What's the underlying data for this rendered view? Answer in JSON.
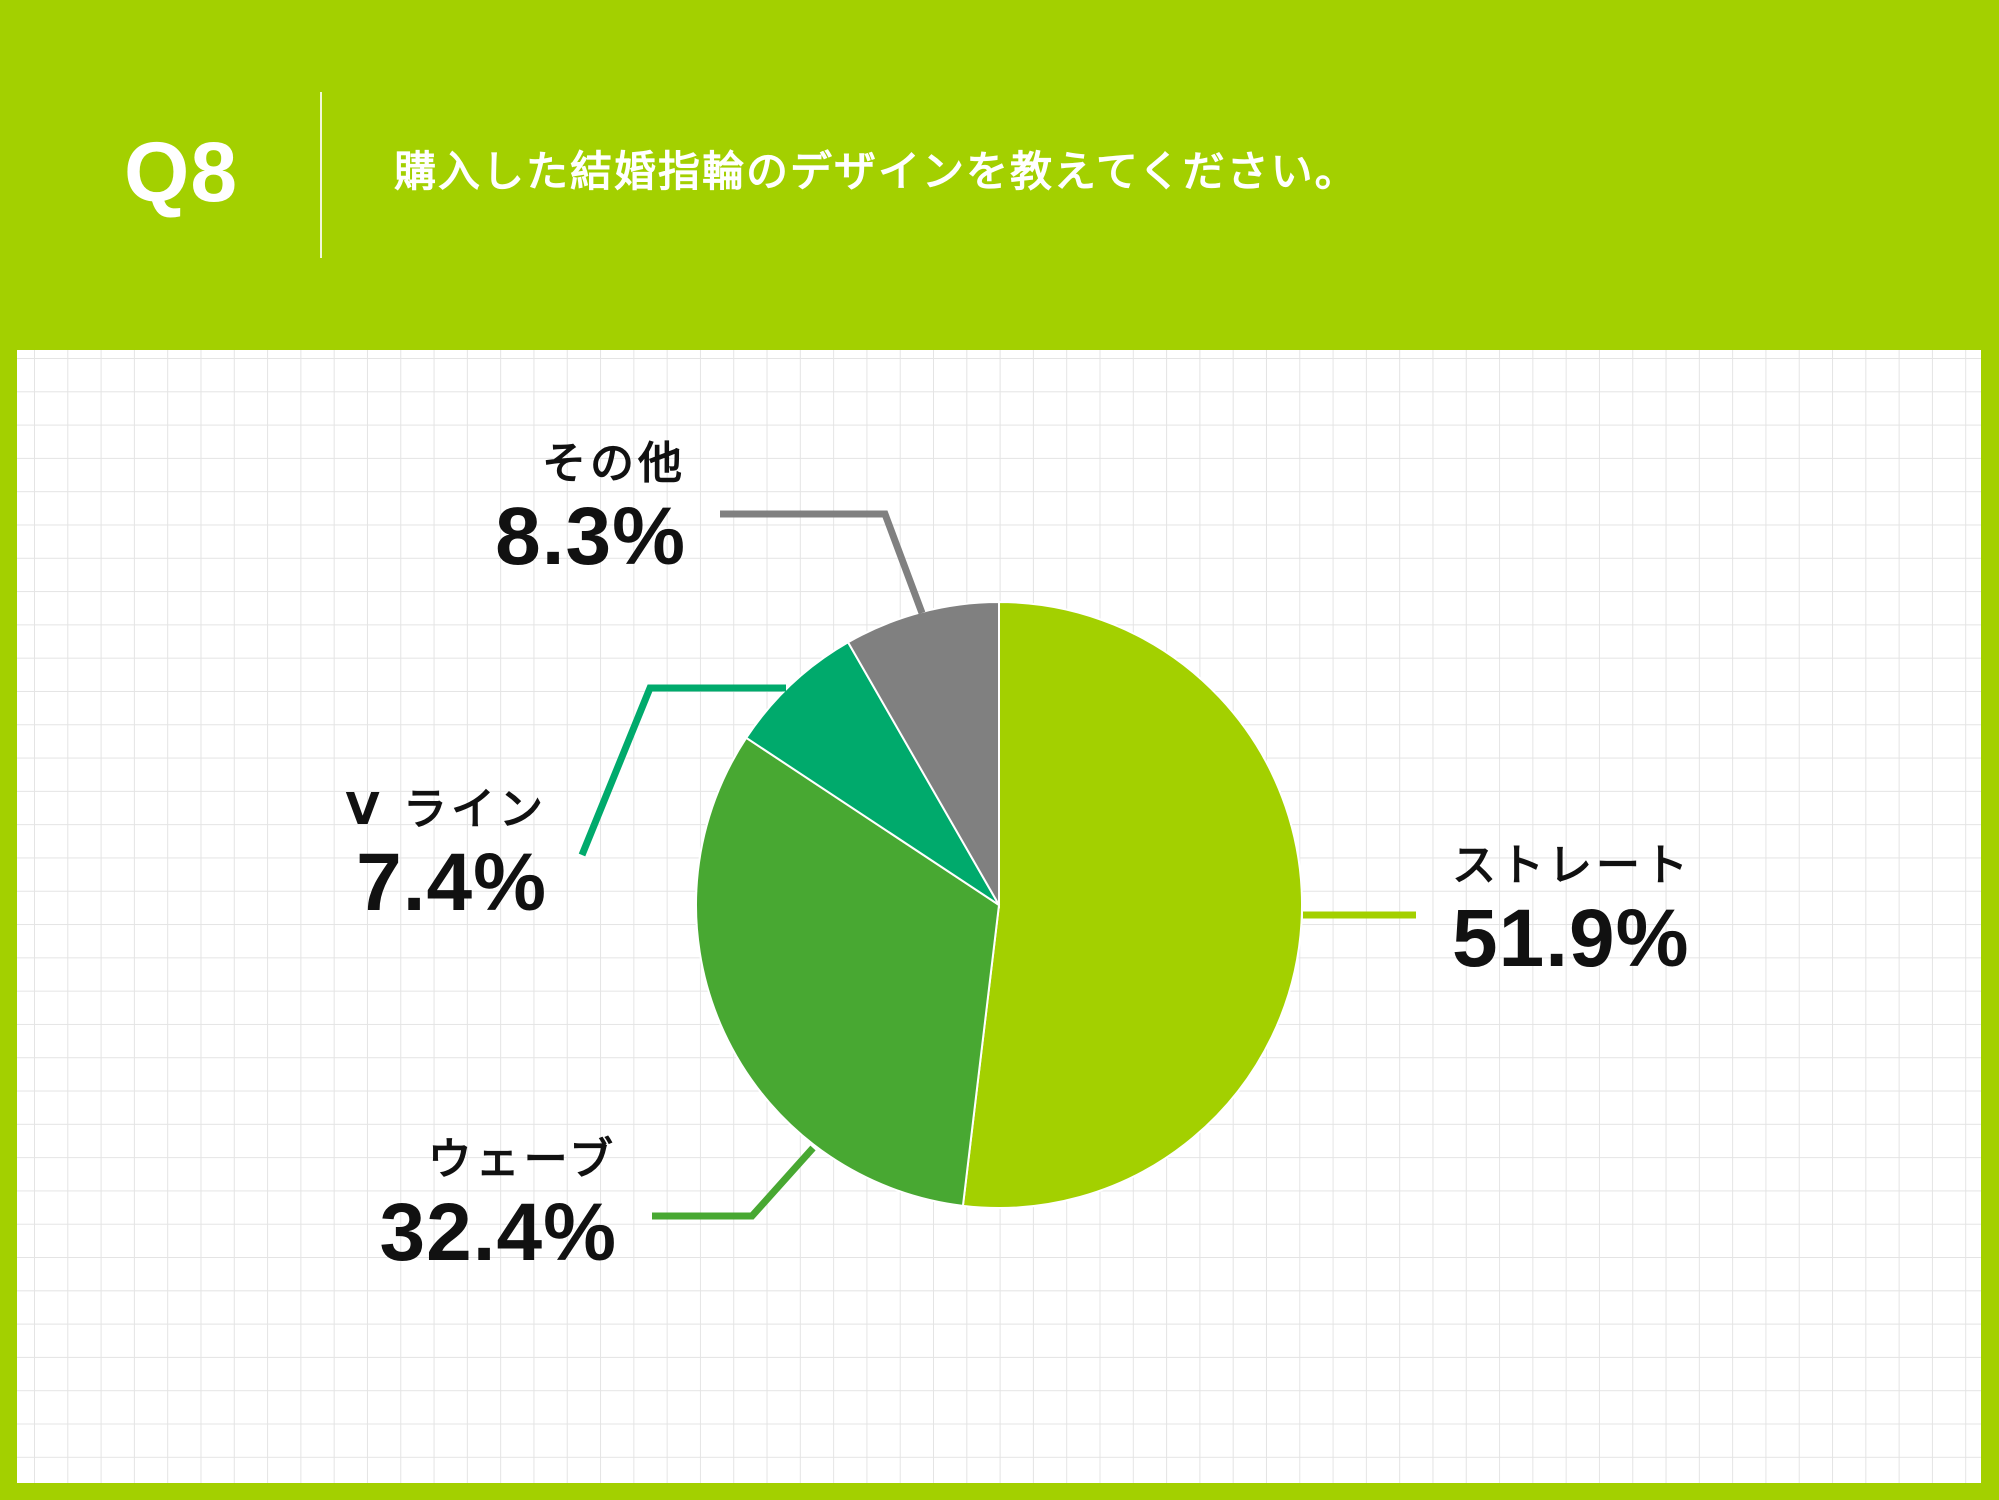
{
  "header": {
    "question_number": "Q8",
    "question_text": "購入した結婚指輪のデザインを教えてください。"
  },
  "colors": {
    "background": "#a3d000",
    "straight": "#a3d000",
    "wave": "#48a832",
    "v_line": "#00aa6c",
    "other": "#808080"
  },
  "labels": {
    "straight": {
      "name": "ストレート",
      "pct": "51.9%"
    },
    "wave": {
      "name": "ウェーブ",
      "pct": "32.4%"
    },
    "v_line": {
      "name": "V ライン",
      "pct": "7.4%"
    },
    "other": {
      "name": "その他",
      "pct": "8.3%"
    }
  },
  "chart_data": {
    "type": "pie",
    "title": "購入した結婚指輪のデザインを教えてください。",
    "categories": [
      "ストレート",
      "ウェーブ",
      "V ライン",
      "その他"
    ],
    "values": [
      51.9,
      32.4,
      7.4,
      8.3
    ],
    "unit": "%",
    "colors": [
      "#a3d000",
      "#48a832",
      "#00aa6c",
      "#808080"
    ],
    "start_angle": "12 o'clock",
    "direction": "clockwise",
    "legend": "none (callout labels)",
    "grid": "background graph-paper grid"
  }
}
